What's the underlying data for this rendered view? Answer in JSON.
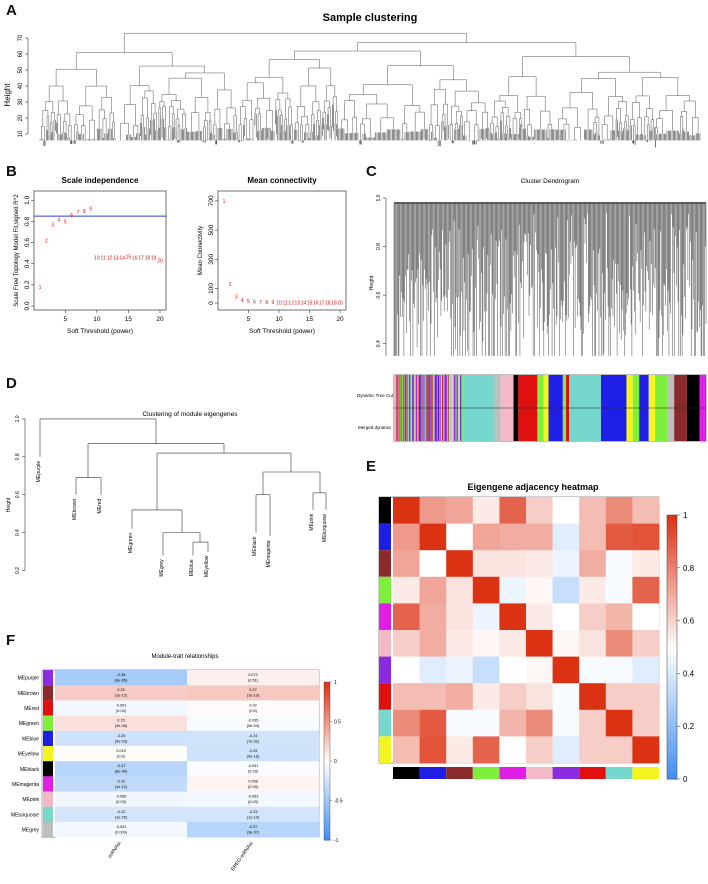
{
  "panels": {
    "A": "A",
    "B": "B",
    "C": "C",
    "D": "D",
    "E": "E",
    "F": "F"
  },
  "colors": {
    "module_black": "#000000",
    "module_blue": "#1e1ee6",
    "module_brown": "#8b2a2a",
    "module_green": "#7cf03a",
    "module_magenta": "#e11ee6",
    "module_pink": "#f3b9c6",
    "module_purple": "#8a2be2",
    "module_red": "#e01010",
    "module_turquoise": "#76d8cc",
    "module_yellow": "#f4f51e",
    "module_grey": "#bebebe"
  },
  "chart_data": [
    {
      "id": "A",
      "type": "dendrogram",
      "title": "Sample clustering",
      "ylabel": "Height",
      "yticks": [
        "10",
        "20",
        "30",
        "40",
        "50",
        "60",
        "70"
      ],
      "ylim": [
        0,
        75
      ]
    },
    {
      "id": "B1",
      "type": "scatter",
      "title": "Scale independence",
      "xlabel": "Soft Threshold (power)",
      "ylabel": "Scale Free Topology Model Fit,signed R^2",
      "xticks": [
        "5",
        "10",
        "15",
        "20"
      ],
      "yticks": [
        "0.0",
        "0.2",
        "0.4",
        "0.6",
        "0.8",
        "1.0"
      ],
      "xlim": [
        1,
        20
      ],
      "ylim": [
        0,
        1.05
      ],
      "hline": 0.85,
      "x": [
        1,
        2,
        3,
        4,
        5,
        6,
        7,
        8,
        9,
        10,
        11,
        12,
        13,
        14,
        15,
        16,
        17,
        18,
        19,
        20
      ],
      "y": [
        0.18,
        0.62,
        0.77,
        0.82,
        0.8,
        0.86,
        0.89,
        0.9,
        0.92,
        0.46,
        0.46,
        0.46,
        0.46,
        0.46,
        0.47,
        0.46,
        0.46,
        0.46,
        0.46,
        0.43
      ],
      "labels": [
        "1",
        "2",
        "3",
        "4",
        "5",
        "6",
        "7",
        "8",
        "9",
        "10",
        "11",
        "12",
        "13",
        "14",
        "15",
        "16",
        "17",
        "18",
        "19",
        "20"
      ]
    },
    {
      "id": "B2",
      "type": "scatter",
      "title": "Mean connectivity",
      "xlabel": "Soft Threshold (power)",
      "ylabel": "Mean Connectivity",
      "xticks": [
        "5",
        "10",
        "15",
        "20"
      ],
      "yticks": [
        "0",
        "100",
        "300",
        "500",
        "700"
      ],
      "xlim": [
        1,
        20
      ],
      "ylim": [
        -20,
        740
      ],
      "x": [
        1,
        2,
        3,
        4,
        5,
        6,
        7,
        8,
        9,
        10,
        11,
        12,
        13,
        14,
        15,
        16,
        17,
        18,
        19,
        20
      ],
      "y": [
        700,
        130,
        45,
        22,
        14,
        10,
        8,
        7,
        6,
        5,
        5,
        5,
        5,
        5,
        5,
        5,
        5,
        5,
        5,
        5
      ],
      "labels": [
        "1",
        "2",
        "3",
        "4",
        "5",
        "6",
        "7",
        "8",
        "9",
        "10",
        "11",
        "12",
        "13",
        "14",
        "15",
        "16",
        "17",
        "18",
        "19",
        "20"
      ]
    },
    {
      "id": "C",
      "type": "dendrogram",
      "title": "Cluster Dendrogram",
      "ylabel": "Height",
      "yticks": [
        "0.4",
        "0.6",
        "0.8",
        "1.0"
      ],
      "ylim": [
        0.3,
        1.0
      ],
      "row_labels": [
        "Dynamic Tree Cut",
        "Merged dynamic"
      ]
    },
    {
      "id": "D",
      "type": "dendrogram",
      "title": "Clustering of module eigengenes",
      "ylabel": "Height",
      "yticks": [
        "0.2",
        "0.4",
        "0.6",
        "0.8",
        "1.0"
      ],
      "ylim": [
        0.15,
        1.1
      ],
      "leaves": [
        "MEpurple",
        "MEbrown",
        "MEred",
        "MEgreen",
        "MEgrey",
        "MEblue",
        "MEyellow",
        "MEblack",
        "MEmagenta",
        "MEpink",
        "MEturquoise"
      ]
    },
    {
      "id": "E",
      "type": "heatmap",
      "title": "Eigengene adjacency heatmap",
      "colorbar_ticks": [
        "0",
        "0.2",
        "0.4",
        "0.6",
        "0.8",
        "1"
      ],
      "row_colors": [
        "black",
        "blue",
        "brown",
        "green",
        "magenta",
        "pink",
        "purple",
        "red",
        "turquoise",
        "yellow"
      ],
      "values": [
        [
          1.0,
          0.75,
          0.72,
          0.55,
          0.88,
          0.62,
          0.5,
          0.66,
          0.78,
          0.66
        ],
        [
          0.75,
          1.0,
          0.5,
          0.72,
          0.7,
          0.7,
          0.42,
          0.66,
          0.9,
          0.92
        ],
        [
          0.72,
          0.5,
          1.0,
          0.57,
          0.57,
          0.55,
          0.45,
          0.7,
          0.48,
          0.55
        ],
        [
          0.55,
          0.72,
          0.57,
          1.0,
          0.45,
          0.52,
          0.36,
          0.55,
          0.48,
          0.88
        ],
        [
          0.88,
          0.7,
          0.57,
          0.45,
          1.0,
          0.55,
          0.5,
          0.62,
          0.68,
          0.5
        ],
        [
          0.62,
          0.7,
          0.55,
          0.52,
          0.55,
          1.0,
          0.52,
          0.57,
          0.78,
          0.62
        ],
        [
          0.5,
          0.42,
          0.45,
          0.36,
          0.5,
          0.52,
          1.0,
          0.48,
          0.48,
          0.42
        ],
        [
          0.66,
          0.66,
          0.7,
          0.55,
          0.62,
          0.57,
          0.48,
          1.0,
          0.62,
          0.62
        ],
        [
          0.78,
          0.9,
          0.48,
          0.48,
          0.68,
          0.78,
          0.48,
          0.62,
          1.0,
          0.62
        ],
        [
          0.66,
          0.92,
          0.55,
          0.88,
          0.5,
          0.62,
          0.42,
          0.62,
          0.62,
          1.0
        ]
      ]
    },
    {
      "id": "F",
      "type": "heatmap",
      "title": "Module-trait relationships",
      "columns": [
        "mRNAsi",
        "EREG-mRNAsi"
      ],
      "rows": [
        "MEpurple",
        "MEbrown",
        "MEred",
        "MEgreen",
        "MEblue",
        "MEyellow",
        "MEblack",
        "MEmagenta",
        "MEpink",
        "MEturquoise",
        "MEgrey"
      ],
      "row_colors": [
        "purple",
        "brown",
        "red",
        "green",
        "blue",
        "yellow",
        "black",
        "magenta",
        "pink",
        "turquoise",
        "grey"
      ],
      "values": [
        [
          -0.45,
          0.072
        ],
        [
          0.25,
          0.27
        ],
        [
          -0.061,
          0.02
        ],
        [
          0.15,
          -0.035
        ],
        [
          -0.25,
          -0.24
        ],
        [
          0.019,
          -0.25
        ],
        [
          -0.37,
          -0.031
        ],
        [
          -0.32,
          0.058
        ],
        [
          -0.066,
          -0.063
        ],
        [
          -0.22,
          -0.23
        ],
        [
          -0.061,
          -0.37
        ]
      ],
      "cell_text": [
        [
          "-0.45",
          "(9e-65)",
          "0.072",
          "(0.51)"
        ],
        [
          "0.25",
          "(1e-12)",
          "0.27",
          "(1e-13)"
        ],
        [
          "-0.061",
          "(0.04)",
          "0.02",
          "(0.5)"
        ],
        [
          "0.15",
          "(3e-06)",
          "-0.035",
          "(5e-04)"
        ],
        [
          "-0.25",
          "(9e-23)",
          "-0.24",
          "(7e-32)"
        ],
        [
          "0.019",
          "(0.5)",
          "-0.25",
          "(9e-16)"
        ],
        [
          "-0.37",
          "(8e-40)",
          "-0.031",
          "(0.29)"
        ],
        [
          "-0.32",
          "(1e-12)",
          "0.058",
          "(0.09)"
        ],
        [
          "-0.066",
          "(0.03)",
          "-0.063",
          "(0.03)"
        ],
        [
          "-0.22",
          "(1e-25)",
          "-0.23",
          "(1e-14)"
        ],
        [
          "-0.061",
          "(0.009)",
          "-0.37",
          "(3e-37)"
        ]
      ],
      "colorbar_ticks": [
        "-1",
        "-0.5",
        "0",
        "0.5",
        "1"
      ]
    }
  ]
}
